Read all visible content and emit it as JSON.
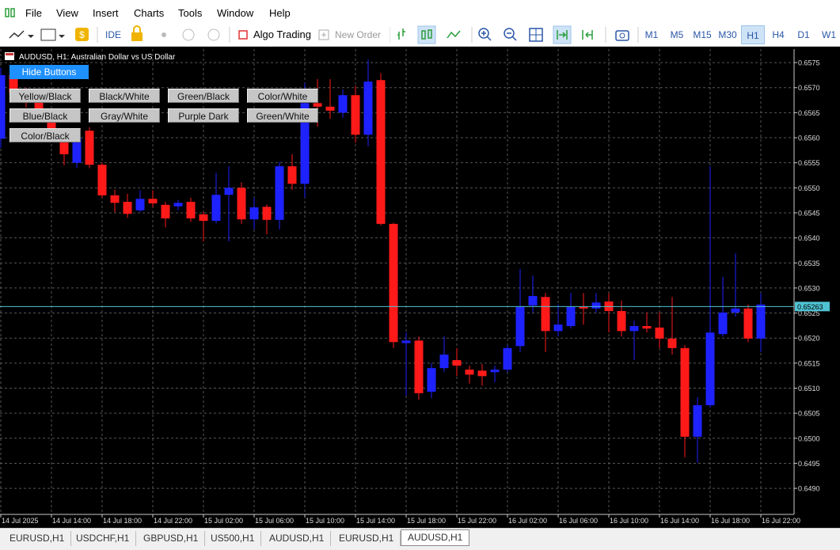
{
  "menu": [
    "File",
    "View",
    "Insert",
    "Charts",
    "Tools",
    "Window",
    "Help"
  ],
  "toolbar": {
    "ide": "IDE",
    "algo_trading": "Algo Trading",
    "new_order": "New Order",
    "timeframes": [
      {
        "label": "M1",
        "active": false
      },
      {
        "label": "M5",
        "active": false
      },
      {
        "label": "M15",
        "active": false
      },
      {
        "label": "M30",
        "active": false
      },
      {
        "label": "H1",
        "active": true
      },
      {
        "label": "H4",
        "active": false
      },
      {
        "label": "D1",
        "active": false
      },
      {
        "label": "W1",
        "active": false
      }
    ]
  },
  "chart_buttons": {
    "hide": "Hide Buttons",
    "themes": [
      "Yellow/Black",
      "Black/White",
      "Green/Black",
      "Color/White",
      "Blue/Black",
      "Gray/White",
      "Purple Dark",
      "Green/White",
      "Color/Black"
    ]
  },
  "chart_data": {
    "type": "candlestick",
    "title": "AUDUSD, H1:  Australian Dollar vs US Dollar",
    "categories": [
      "14 Jul 2025",
      null,
      null,
      null,
      "14 Jul 14:00",
      null,
      null,
      null,
      "14 Jul 18:00",
      null,
      null,
      null,
      "14 Jul 22:00",
      null,
      null,
      null,
      "15 Jul 02:00",
      null,
      null,
      null,
      "15 Jul 06:00",
      null,
      null,
      null,
      "15 Jul 10:00",
      null,
      null,
      null,
      "15 Jul 14:00",
      null,
      null,
      null,
      "15 Jul 18:00",
      null,
      null,
      null,
      "15 Jul 22:00",
      null,
      null,
      null,
      "16 Jul 02:00",
      null,
      null,
      null,
      "16 Jul 06:00",
      null,
      null,
      null,
      "16 Jul 10:00",
      null,
      null,
      null,
      "16 Jul 14:00",
      null,
      null,
      null,
      "16 Jul 18:00",
      null,
      null,
      null,
      "16 Jul 22:00"
    ],
    "open": [
      0.65598,
      0.65725,
      0.6569,
      0.6567,
      0.6564,
      0.656,
      0.6555,
      0.65614,
      0.65546,
      0.65485,
      0.65472,
      0.65455,
      0.65478,
      0.65466,
      0.65463,
      0.65472,
      0.65447,
      0.65434,
      0.65486,
      0.655,
      0.65437,
      0.65462,
      0.65436,
      0.65543,
      0.65508,
      0.65669,
      0.65662,
      0.6565,
      0.65685,
      0.65606,
      0.65715,
      0.65428,
      0.6519,
      0.65195,
      0.65093,
      0.6514,
      0.65156,
      0.65137,
      0.65135,
      0.65132,
      0.65137,
      0.65184,
      0.65265,
      0.65282,
      0.65214,
      0.65224,
      0.65262,
      0.65259,
      0.65273,
      0.65254,
      0.65214,
      0.65224,
      0.65221,
      0.65199,
      0.6518,
      0.65003,
      0.65066,
      0.65208,
      0.65251,
      0.65259,
      0.65199
    ],
    "high": [
      0.6574,
      0.65735,
      0.657,
      0.6568,
      0.6565,
      0.65605,
      0.6561,
      0.65621,
      0.6555,
      0.65496,
      0.65488,
      0.65495,
      0.65495,
      0.65472,
      0.65476,
      0.6548,
      0.65452,
      0.6553,
      0.65543,
      0.65511,
      0.6548,
      0.65467,
      0.65551,
      0.65567,
      0.65709,
      0.65717,
      0.65717,
      0.65696,
      0.65704,
      0.65756,
      0.65729,
      0.6543,
      0.65211,
      0.65203,
      0.6515,
      0.65203,
      0.6518,
      0.65145,
      0.65148,
      0.65145,
      0.65186,
      0.65338,
      0.65325,
      0.6529,
      0.65267,
      0.6529,
      0.6529,
      0.6529,
      0.6529,
      0.65275,
      0.65235,
      0.65251,
      0.65251,
      0.65282,
      0.65186,
      0.65082,
      0.65543,
      0.65322,
      0.65369,
      0.65267,
      0.6529
    ],
    "low": [
      0.6558,
      0.6568,
      0.6566,
      0.6563,
      0.656,
      0.65545,
      0.6554,
      0.65539,
      0.6548,
      0.65451,
      0.6544,
      0.65452,
      0.65461,
      0.65421,
      0.65455,
      0.65432,
      0.65393,
      0.65429,
      0.65393,
      0.65428,
      0.65417,
      0.65407,
      0.65417,
      0.65496,
      0.6548,
      0.65622,
      0.65638,
      0.6564,
      0.6559,
      0.65583,
      0.65425,
      0.6518,
      0.65085,
      0.65077,
      0.6508,
      0.65132,
      0.65124,
      0.65109,
      0.65105,
      0.65112,
      0.65132,
      0.65172,
      0.65251,
      0.65172,
      0.65203,
      0.65219,
      0.65227,
      0.65251,
      0.65211,
      0.65203,
      0.65156,
      0.65211,
      0.6518,
      0.65167,
      0.64962,
      0.64951,
      0.65061,
      0.65203,
      0.65243,
      0.65192,
      0.65172
    ],
    "close": [
      0.65725,
      0.6569,
      0.6567,
      0.6564,
      0.6561,
      0.65567,
      0.656,
      0.65546,
      0.65485,
      0.6547,
      0.65448,
      0.65478,
      0.65469,
      0.65439,
      0.6547,
      0.65439,
      0.65434,
      0.65486,
      0.655,
      0.65437,
      0.65461,
      0.65436,
      0.65543,
      0.65508,
      0.65669,
      0.65662,
      0.65654,
      0.65685,
      0.65606,
      0.65712,
      0.65428,
      0.65192,
      0.65195,
      0.6509,
      0.6514,
      0.65167,
      0.65145,
      0.65127,
      0.65124,
      0.65137,
      0.6518,
      0.65262,
      0.65284,
      0.65214,
      0.65227,
      0.65262,
      0.65259,
      0.65271,
      0.65254,
      0.65214,
      0.65224,
      0.65219,
      0.65199,
      0.6518,
      0.65003,
      0.65066,
      0.65211,
      0.65251,
      0.65259,
      0.65199,
      0.65267
    ],
    "up_color": "#1e22ff",
    "down_color": "#ff1a1a",
    "ylim": [
      0.64848,
      0.65777
    ],
    "yticks": [
      {
        "value": 0.649,
        "label": "0.6490"
      },
      0.6495,
      {
        "value": 0.65,
        "label": "0.6500"
      },
      0.6505,
      {
        "value": 0.651,
        "label": "0.6510"
      },
      0.6515,
      {
        "value": 0.652,
        "label": "0.6520"
      },
      0.6525,
      {
        "value": 0.653,
        "label": "0.6530"
      },
      0.6535,
      {
        "value": 0.654,
        "label": "0.6540"
      },
      0.6545,
      {
        "value": 0.655,
        "label": "0.6550"
      },
      0.6555,
      {
        "value": 0.656,
        "label": "0.6560"
      },
      0.6565,
      {
        "value": 0.657,
        "label": "0.6570"
      },
      0.6575
    ],
    "price_line": 0.65263,
    "price_line_color": "#4fc3d3",
    "grid": true
  },
  "tabs": [
    {
      "label": "EURUSD,H1",
      "active": false
    },
    {
      "label": "USDCHF,H1",
      "active": false
    },
    {
      "label": "GBPUSD,H1",
      "active": false
    },
    {
      "label": "US500,H1",
      "active": false
    },
    {
      "label": "AUDUSD,H1",
      "active": false
    },
    {
      "label": "EURUSD,H1",
      "active": false
    },
    {
      "label": "AUDUSD,H1",
      "active": true
    }
  ]
}
